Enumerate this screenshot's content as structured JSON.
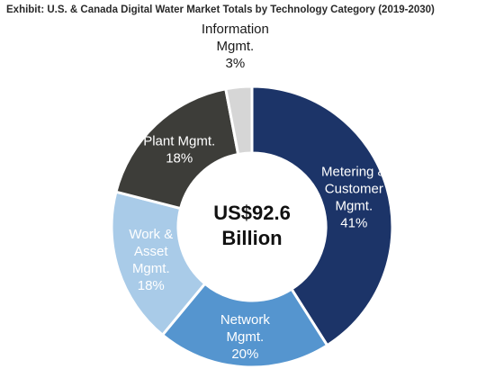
{
  "chart_data": {
    "type": "pie",
    "title": "Exhibit: U.S. & Canada Digital Water Market Totals by Technology Category (2019-2030)",
    "center_text": [
      "US$92.6",
      "Billion"
    ],
    "slices": [
      {
        "label": [
          "Metering &",
          "Customer",
          "Mgmt."
        ],
        "value_label": "41%",
        "value": 41,
        "color": "#1c3468",
        "text_color": "#ffffff"
      },
      {
        "label": [
          "Network",
          "Mgmt."
        ],
        "value_label": "20%",
        "value": 20,
        "color": "#5595cf",
        "text_color": "#ffffff"
      },
      {
        "label": [
          "Work &",
          "Asset",
          "Mgmt."
        ],
        "value_label": "18%",
        "value": 18,
        "color": "#a9cbe8",
        "text_color": "#ffffff"
      },
      {
        "label": [
          "Plant Mgmt."
        ],
        "value_label": "18%",
        "value": 18,
        "color": "#3d3d39",
        "text_color": "#ffffff"
      },
      {
        "label": [
          "Information",
          "Mgmt."
        ],
        "value_label": "3%",
        "value": 3,
        "color": "#d6d6d6",
        "text_color": "#1a1a1a"
      }
    ]
  }
}
